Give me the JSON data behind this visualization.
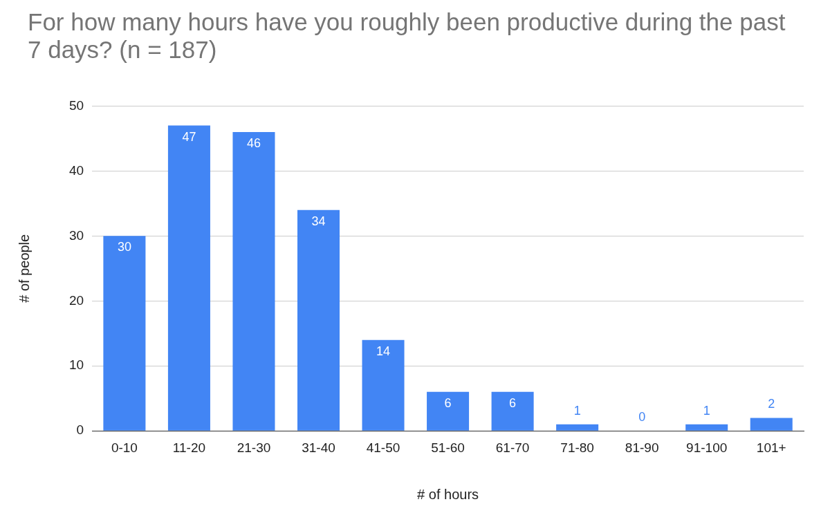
{
  "chart_data": {
    "type": "bar",
    "title": "For how many hours have you roughly been productive during the past 7 days? (n = 187)",
    "xlabel": "# of hours",
    "ylabel": "# of people",
    "categories": [
      "0-10",
      "11-20",
      "21-30",
      "31-40",
      "41-50",
      "51-60",
      "61-70",
      "71-80",
      "81-90",
      "91-100",
      "101+"
    ],
    "values": [
      30,
      47,
      46,
      34,
      14,
      6,
      6,
      1,
      0,
      1,
      2
    ],
    "color": "#4285f4",
    "ylim": [
      0,
      50
    ],
    "yticks": [
      0,
      10,
      20,
      30,
      40,
      50
    ],
    "grid": "y",
    "legend": false,
    "data_labels": true
  }
}
